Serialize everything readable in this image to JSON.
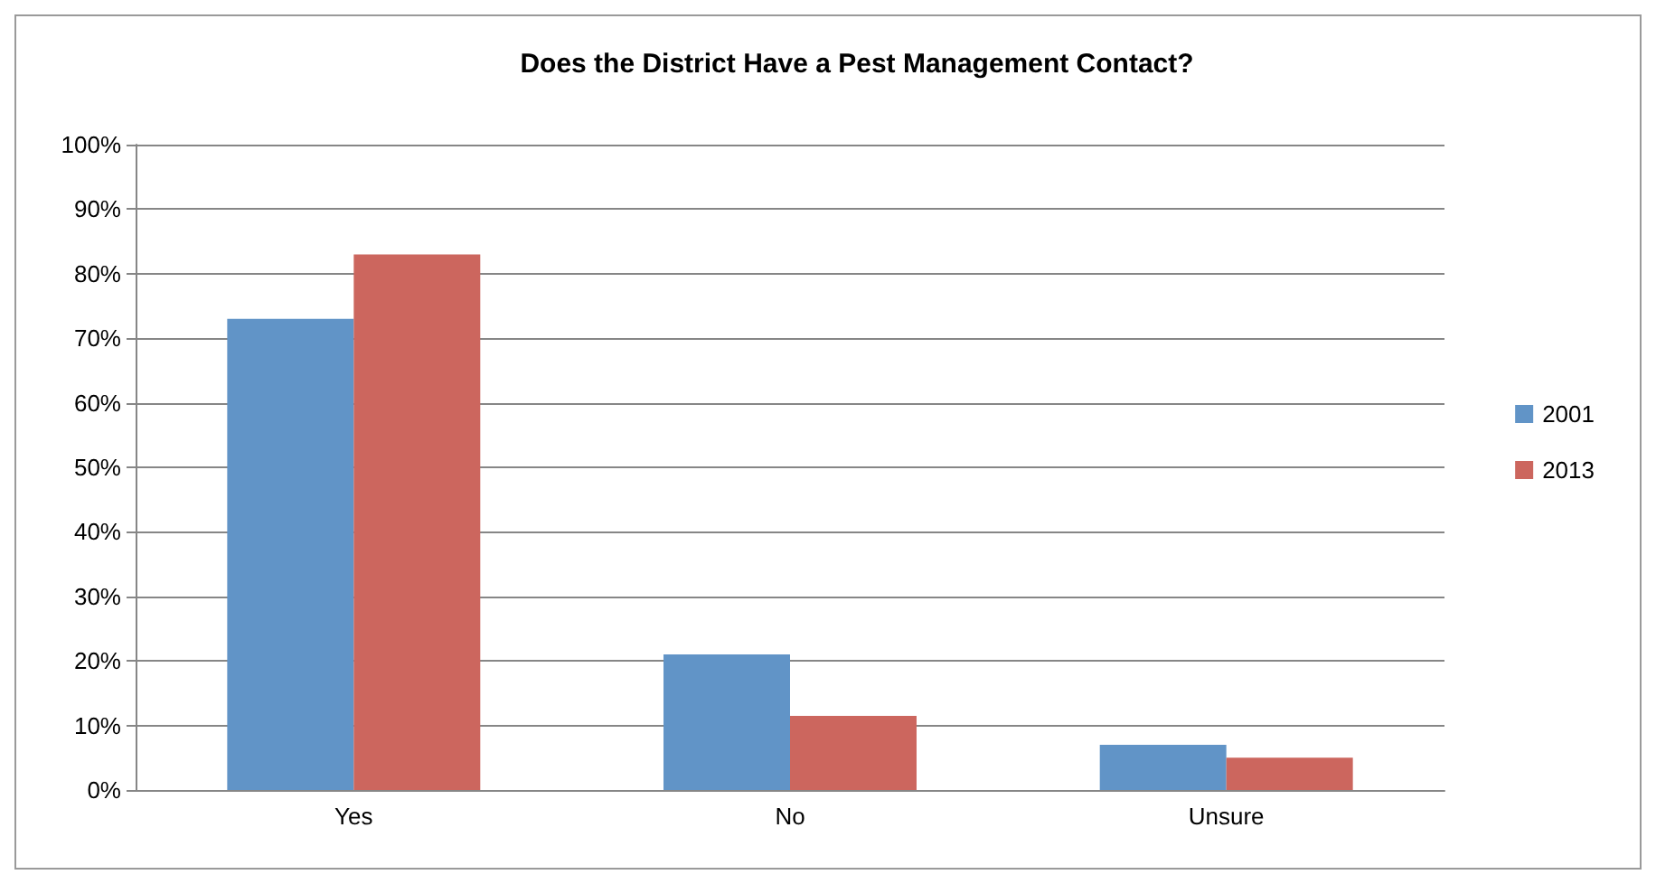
{
  "chart_data": {
    "type": "bar",
    "title": "Does the District Have a Pest Management Contact?",
    "categories": [
      "Yes",
      "No",
      "Unsure"
    ],
    "series": [
      {
        "name": "2001",
        "color": "#6194c7",
        "values": [
          73,
          21,
          7
        ]
      },
      {
        "name": "2013",
        "color": "#cc665e",
        "values": [
          83,
          11.5,
          5
        ]
      }
    ],
    "ylim": [
      0,
      100
    ],
    "yticks": [
      {
        "value": 0,
        "label": "0%"
      },
      {
        "value": 10,
        "label": "10%"
      },
      {
        "value": 20,
        "label": "20%"
      },
      {
        "value": 30,
        "label": "30%"
      },
      {
        "value": 40,
        "label": "40%"
      },
      {
        "value": 50,
        "label": "50%"
      },
      {
        "value": 60,
        "label": "60%"
      },
      {
        "value": 70,
        "label": "70%"
      },
      {
        "value": 80,
        "label": "80%"
      },
      {
        "value": 90,
        "label": "90%"
      },
      {
        "value": 100,
        "label": "100%"
      }
    ],
    "grid": "y",
    "legend": "right"
  }
}
